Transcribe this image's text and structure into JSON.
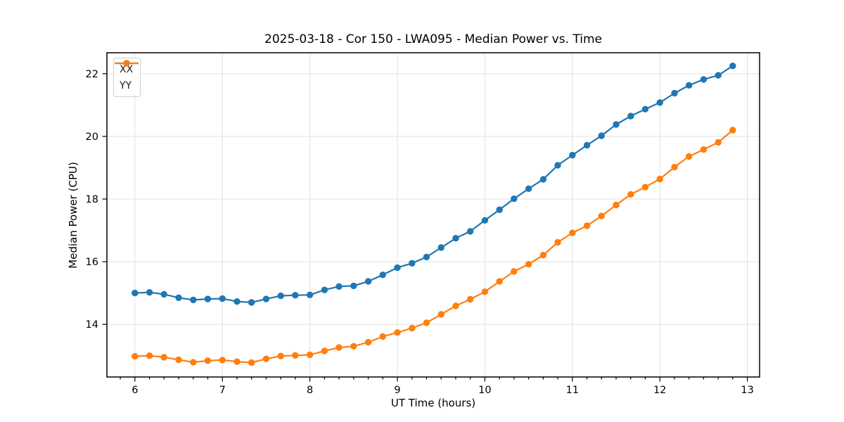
{
  "figure": {
    "background": "#ffffff",
    "grid_color": "#e0e0e0",
    "spine_color": "#000000",
    "tick_label_color": "#000000"
  },
  "chart_data": {
    "type": "line",
    "title": "2025-03-18 - Cor 150 - LWA095 - Median Power vs. Time",
    "xlabel": "UT Time (hours)",
    "ylabel": "Median Power (CPU)",
    "xlim": [
      5.68,
      13.14
    ],
    "ylim": [
      12.32,
      22.67
    ],
    "x_major_ticks": [
      6,
      7,
      8,
      9,
      10,
      11,
      12,
      13
    ],
    "y_major_ticks": [
      14,
      16,
      18,
      20,
      22
    ],
    "x_minor_step": 0.1667,
    "grid": "major-both",
    "legend_position": "upper-left",
    "marker": "circle",
    "x": [
      6.0,
      6.167,
      6.333,
      6.5,
      6.667,
      6.833,
      7.0,
      7.167,
      7.333,
      7.5,
      7.667,
      7.833,
      8.0,
      8.167,
      8.333,
      8.5,
      8.667,
      8.833,
      9.0,
      9.167,
      9.333,
      9.5,
      9.667,
      9.833,
      10.0,
      10.167,
      10.333,
      10.5,
      10.667,
      10.833,
      11.0,
      11.167,
      11.333,
      11.5,
      11.667,
      11.833,
      12.0,
      12.167,
      12.333,
      12.5,
      12.667,
      12.833
    ],
    "series": [
      {
        "name": "XX",
        "color": "#1f77b4",
        "values": [
          15.0,
          15.02,
          14.96,
          14.85,
          14.78,
          14.81,
          14.82,
          14.73,
          14.7,
          14.81,
          14.91,
          14.93,
          14.94,
          15.1,
          15.21,
          15.23,
          15.37,
          15.58,
          15.81,
          15.95,
          16.15,
          16.45,
          16.75,
          16.97,
          17.32,
          17.66,
          18.01,
          18.33,
          18.63,
          19.08,
          19.4,
          19.72,
          20.02,
          20.38,
          20.65,
          20.87,
          21.08,
          21.38,
          21.63,
          21.82,
          21.95,
          22.25
        ]
      },
      {
        "name": "YY",
        "color": "#ff7f0e",
        "values": [
          12.98,
          13.0,
          12.95,
          12.87,
          12.79,
          12.84,
          12.86,
          12.81,
          12.78,
          12.9,
          12.99,
          13.01,
          13.03,
          13.15,
          13.26,
          13.3,
          13.43,
          13.61,
          13.74,
          13.88,
          14.05,
          14.32,
          14.59,
          14.8,
          15.04,
          15.37,
          15.69,
          15.92,
          16.21,
          16.62,
          16.92,
          17.15,
          17.46,
          17.81,
          18.15,
          18.38,
          18.64,
          19.02,
          19.36,
          19.58,
          19.81,
          20.2
        ]
      }
    ]
  }
}
